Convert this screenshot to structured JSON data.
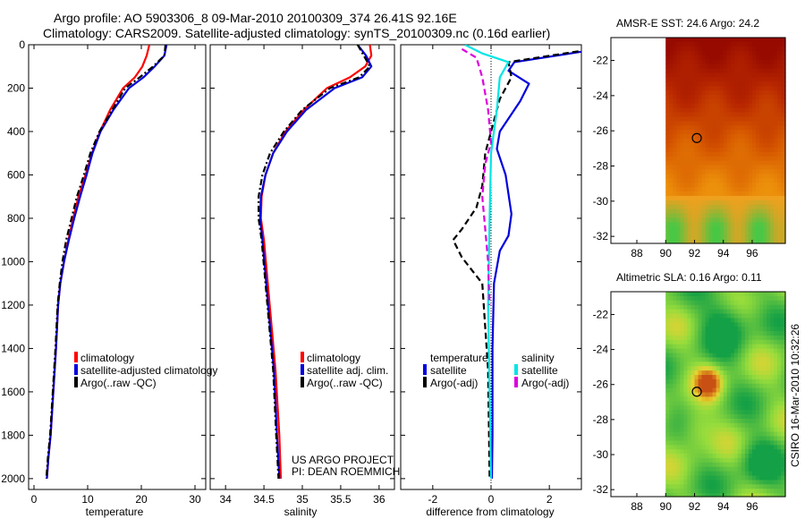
{
  "figure": {
    "title_line1": "Argo profile: AO 5903306_8 09-Mar-2010 20100309_374 26.41S 92.16E",
    "title_line2": "Climatology: CARS2009. Satellite-adjusted climatology: synTS_20100309.nc (0.16d earlier)",
    "credit_line1": "US ARGO PROJECT",
    "credit_line2": "PI: DEAN ROEMMICH",
    "timestamp": "CSIRO 16-Mar-2010 10:32:26"
  },
  "colors": {
    "climatology": "#ff0000",
    "satellite": "#0000dd",
    "argo": "#000000",
    "satellite_salinity": "#00e5e5",
    "argo_salinity": "#dd00dd",
    "marker": "#000000"
  },
  "chart_data": [
    {
      "id": "temperature",
      "type": "line",
      "xlabel": "temperature",
      "ylabel": "",
      "xlim": [
        -1,
        32
      ],
      "ylim": [
        2050,
        0
      ],
      "xticks": [
        "0",
        "10",
        "20",
        "30"
      ],
      "xtick_values": [
        0,
        10,
        20,
        30
      ],
      "yticks": [
        "0",
        "200",
        "400",
        "600",
        "800",
        "1000",
        "1200",
        "1400",
        "1600",
        "1800",
        "2000"
      ],
      "ytick_values": [
        0,
        200,
        400,
        600,
        800,
        1000,
        1200,
        1400,
        1600,
        1800,
        2000
      ],
      "legend": [
        "climatology",
        "satellite-adjusted climatology",
        "Argo(..raw -QC)"
      ],
      "series": [
        {
          "name": "climatology",
          "color": "#ff0000",
          "style": "solid",
          "x": [
            21.5,
            21.0,
            20.2,
            18.8,
            16.6,
            14.2,
            12.3,
            10.8,
            9.6,
            8.3,
            7.3,
            6.4,
            5.6,
            4.9,
            4.5,
            4.1,
            3.6,
            3.1,
            2.7,
            2.4
          ],
          "y": [
            0,
            50,
            100,
            150,
            200,
            300,
            400,
            500,
            600,
            700,
            800,
            900,
            1000,
            1100,
            1200,
            1400,
            1600,
            1800,
            1900,
            2000
          ]
        },
        {
          "name": "satellite-adjusted climatology",
          "color": "#0000dd",
          "style": "solid",
          "x": [
            24.7,
            24.3,
            22.5,
            20.4,
            17.7,
            14.8,
            12.4,
            10.9,
            9.8,
            8.6,
            7.5,
            6.5,
            5.6,
            4.9,
            4.5,
            4.1,
            3.6,
            3.1,
            2.7,
            2.4
          ],
          "y": [
            0,
            50,
            100,
            150,
            200,
            300,
            400,
            500,
            600,
            700,
            800,
            900,
            1000,
            1100,
            1200,
            1400,
            1600,
            1800,
            1900,
            2000
          ]
        },
        {
          "name": "Argo(..raw -QC)",
          "color": "#000000",
          "style": "dashdot",
          "x": [
            24.5,
            24.3,
            22.2,
            19.7,
            17.0,
            14.6,
            12.2,
            10.5,
            9.3,
            8.0,
            7.0,
            6.0,
            5.3,
            4.8,
            4.4,
            4.0,
            3.5,
            3.0,
            2.6,
            2.3
          ],
          "y": [
            0,
            50,
            100,
            150,
            200,
            300,
            400,
            500,
            600,
            700,
            800,
            900,
            1000,
            1100,
            1200,
            1400,
            1600,
            1800,
            1900,
            2000
          ]
        }
      ]
    },
    {
      "id": "salinity",
      "type": "line",
      "xlabel": "salinity",
      "xlim": [
        33.8,
        36.2
      ],
      "ylim": [
        2050,
        0
      ],
      "xticks": [
        "34",
        "34.5",
        "35",
        "35.5",
        "36"
      ],
      "xtick_values": [
        34,
        34.5,
        35,
        35.5,
        36
      ],
      "legend": [
        "climatology",
        "satellite adj. clim.",
        "Argo(..raw -QC)"
      ],
      "series": [
        {
          "name": "climatology",
          "color": "#ff0000",
          "style": "solid",
          "x": [
            35.88,
            35.9,
            35.82,
            35.62,
            35.32,
            35.02,
            34.78,
            34.62,
            34.52,
            34.47,
            34.46,
            34.5,
            34.55,
            34.6,
            34.65,
            34.7,
            34.72
          ],
          "y": [
            0,
            50,
            100,
            150,
            200,
            300,
            400,
            500,
            600,
            700,
            800,
            900,
            1100,
            1300,
            1500,
            1800,
            2000
          ]
        },
        {
          "name": "satellite adj. clim.",
          "color": "#0000dd",
          "style": "solid",
          "x": [
            35.72,
            35.83,
            35.9,
            35.78,
            35.42,
            35.05,
            34.8,
            34.62,
            34.52,
            34.46,
            34.45,
            34.48,
            34.53,
            34.58,
            34.63,
            34.67,
            34.7
          ],
          "y": [
            0,
            50,
            100,
            150,
            200,
            300,
            400,
            500,
            600,
            700,
            800,
            900,
            1100,
            1300,
            1500,
            1800,
            2000
          ]
        },
        {
          "name": "Argo(..raw -QC)",
          "color": "#000000",
          "style": "dashdot",
          "x": [
            35.72,
            35.8,
            35.88,
            35.74,
            35.36,
            35.0,
            34.76,
            34.58,
            34.48,
            34.43,
            34.43,
            34.47,
            34.52,
            34.57,
            34.62,
            34.66,
            34.69
          ],
          "y": [
            0,
            50,
            100,
            150,
            200,
            300,
            400,
            500,
            600,
            700,
            800,
            900,
            1100,
            1300,
            1500,
            1800,
            2000
          ]
        }
      ]
    },
    {
      "id": "difference",
      "type": "line",
      "xlabel": "difference from climatology",
      "xlim": [
        -3.1,
        3.1
      ],
      "ylim": [
        2050,
        0
      ],
      "xticks": [
        "-2",
        "0",
        "2"
      ],
      "xtick_values": [
        -2,
        0,
        2
      ],
      "legend_groups": [
        "temperature",
        "salinity"
      ],
      "legend": [
        "satellite",
        "Argo(-adj)",
        "satellite",
        "Argo(-adj)"
      ],
      "series": [
        {
          "name": "temperature satellite",
          "color": "#0000dd",
          "style": "solid",
          "x": [
            3.2,
            0.8,
            0.6,
            1.3,
            1.0,
            0.3,
            0.2,
            0.5,
            0.7,
            0.6,
            0.3,
            0.1,
            0.05,
            0.05,
            0.03
          ],
          "y": [
            30,
            80,
            120,
            180,
            260,
            400,
            480,
            600,
            780,
            880,
            950,
            1100,
            1400,
            1800,
            2000
          ]
        },
        {
          "name": "temperature Argo(-adj)",
          "color": "#000000",
          "style": "dashed",
          "x": [
            3.0,
            0.6,
            0.7,
            0.3,
            0.0,
            -0.2,
            -0.3,
            -0.5,
            -1.0,
            -1.3,
            -1.0,
            -0.3,
            -0.1,
            -0.05
          ],
          "y": [
            30,
            80,
            150,
            250,
            400,
            500,
            650,
            750,
            850,
            900,
            980,
            1100,
            1500,
            2000
          ]
        },
        {
          "name": "salinity satellite",
          "color": "#00e5e5",
          "style": "solid",
          "x": [
            -0.9,
            -0.3,
            0.6,
            0.3,
            0.2,
            0.0,
            -0.05,
            -0.1,
            -0.05,
            0.0
          ],
          "y": [
            0,
            40,
            80,
            150,
            300,
            500,
            800,
            1200,
            1600,
            2000
          ]
        },
        {
          "name": "salinity Argo(-adj)",
          "color": "#dd00dd",
          "style": "dashed",
          "x": [
            -1.0,
            -0.5,
            -0.3,
            -0.1,
            0.0,
            -0.2,
            -0.3,
            -0.2,
            -0.1,
            -0.05
          ],
          "y": [
            20,
            60,
            150,
            300,
            450,
            550,
            700,
            850,
            1000,
            1200
          ]
        }
      ]
    }
  ],
  "maps": [
    {
      "id": "sst",
      "title": "AMSR-E SST: 24.6 Argo: 24.2",
      "xticks": [
        "88",
        "90",
        "92",
        "94",
        "96"
      ],
      "xtick_values": [
        88,
        90,
        92,
        94,
        96
      ],
      "yticks": [
        "-22",
        "-24",
        "-26",
        "-28",
        "-30",
        "-32"
      ],
      "ytick_values": [
        -22,
        -24,
        -26,
        -28,
        -30,
        -32
      ],
      "xlim": [
        86.2,
        98.3
      ],
      "ylim": [
        -32.4,
        -20.7
      ],
      "data_lon_min": 90,
      "marker": {
        "lon": 92.16,
        "lat": -26.41
      }
    },
    {
      "id": "sla",
      "title": "Altimetric SLA: 0.16 Argo: 0.11",
      "xticks": [
        "88",
        "90",
        "92",
        "94",
        "96"
      ],
      "xtick_values": [
        88,
        90,
        92,
        94,
        96
      ],
      "yticks": [
        "-22",
        "-24",
        "-26",
        "-28",
        "-30",
        "-32"
      ],
      "ytick_values": [
        -22,
        -24,
        -26,
        -28,
        -30,
        -32
      ],
      "xlim": [
        86.2,
        98.3
      ],
      "ylim": [
        -32.4,
        -20.7
      ],
      "data_lon_min": 90,
      "marker": {
        "lon": 92.16,
        "lat": -26.41
      }
    }
  ]
}
